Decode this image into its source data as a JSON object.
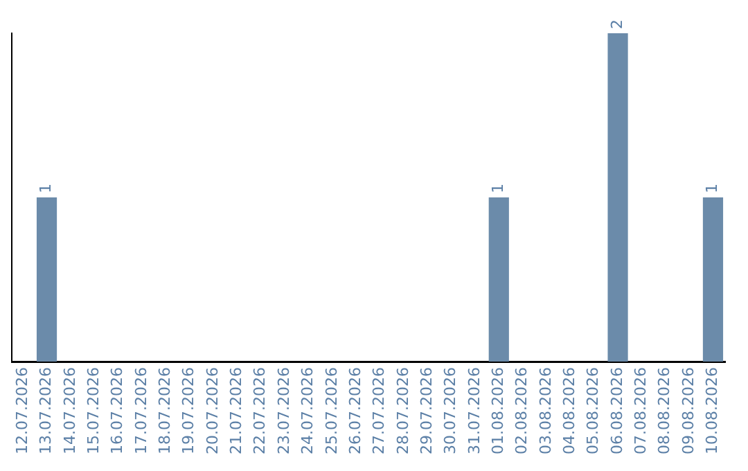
{
  "chart_data": {
    "type": "bar",
    "categories": [
      "12.07.2026",
      "13.07.2026",
      "14.07.2026",
      "15.07.2026",
      "16.07.2026",
      "17.07.2026",
      "18.07.2026",
      "19.07.2026",
      "20.07.2026",
      "21.07.2026",
      "22.07.2026",
      "23.07.2026",
      "24.07.2026",
      "25.07.2026",
      "26.07.2026",
      "27.07.2026",
      "28.07.2026",
      "29.07.2026",
      "30.07.2026",
      "31.07.2026",
      "01.08.2026",
      "02.08.2026",
      "03.08.2026",
      "04.08.2026",
      "05.08.2026",
      "06.08.2026",
      "07.08.2026",
      "08.08.2026",
      "09.08.2026",
      "10.08.2026"
    ],
    "values": [
      0,
      1,
      0,
      0,
      0,
      0,
      0,
      0,
      0,
      0,
      0,
      0,
      0,
      0,
      0,
      0,
      0,
      0,
      0,
      0,
      1,
      0,
      0,
      0,
      0,
      2,
      0,
      0,
      0,
      1
    ],
    "value_labels": [
      null,
      "1",
      null,
      null,
      null,
      null,
      null,
      null,
      null,
      null,
      null,
      null,
      null,
      null,
      null,
      null,
      null,
      null,
      null,
      null,
      "1",
      null,
      null,
      null,
      null,
      "2",
      null,
      null,
      null,
      "1"
    ],
    "color": "#6b8baa",
    "tick_labels": "x",
    "grid": false,
    "legend": false
  }
}
